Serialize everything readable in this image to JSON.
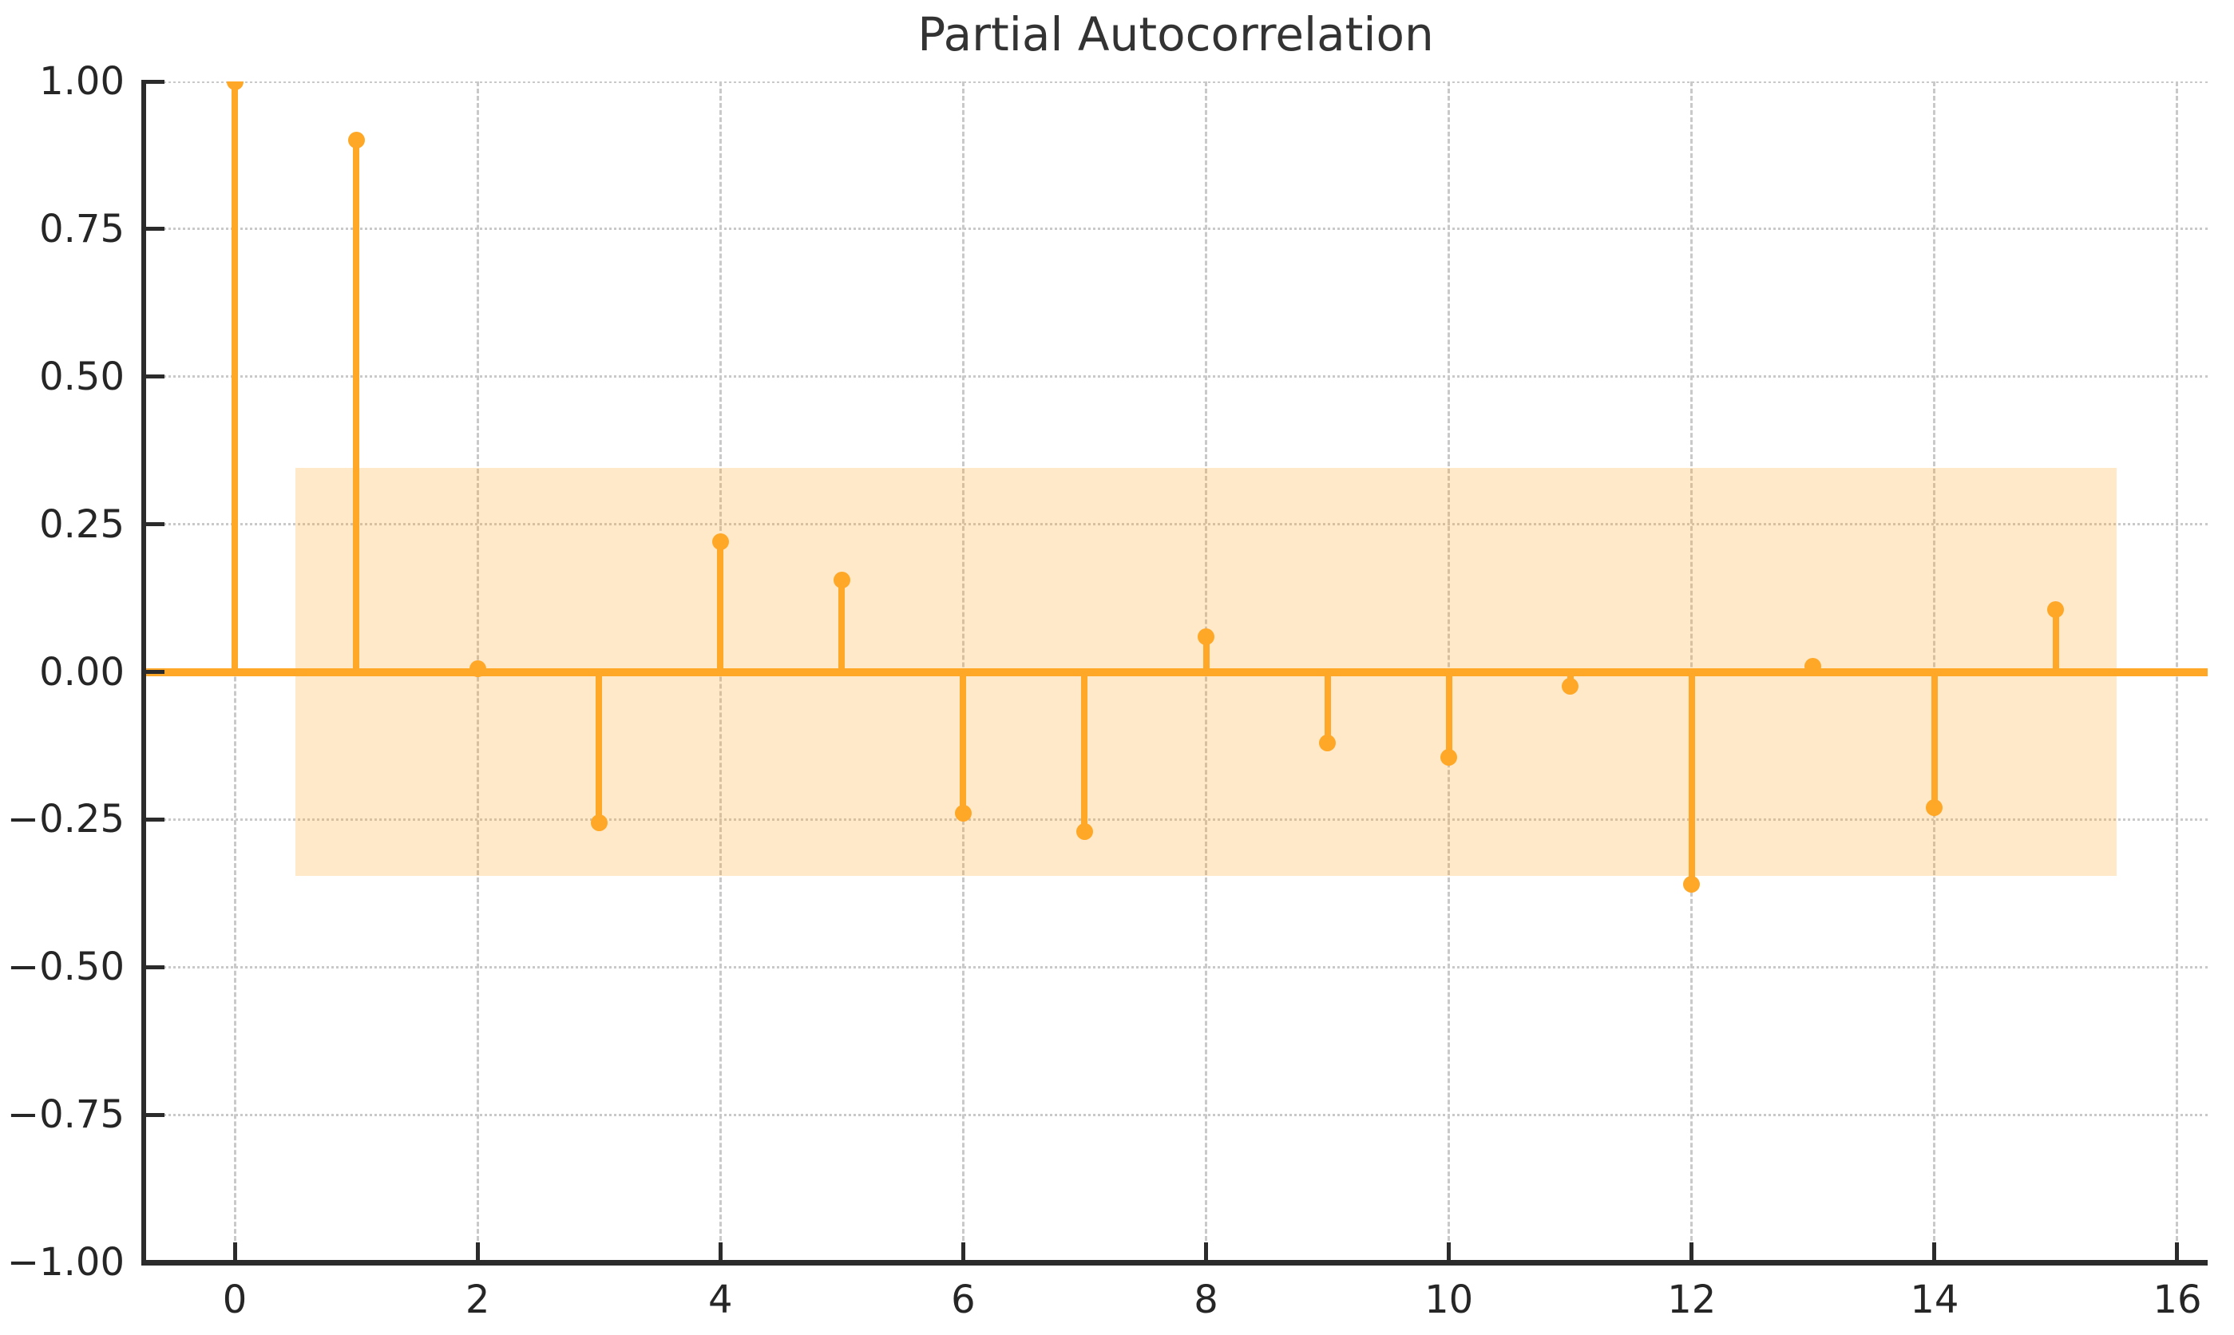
{
  "title": "Partial Autocorrelation",
  "colors": {
    "stem": "#FFA726",
    "marker": "#FFA726",
    "zero_line": "#FFA726",
    "band_fill": "rgba(255,167,38,0.25)",
    "grid": "#c9c9c9",
    "spine": "#2b2b2b",
    "tick_label": "#262626",
    "title_text": "#333333"
  },
  "chart_data": {
    "type": "stem",
    "title": "Partial Autocorrelation",
    "xlabel": "",
    "ylabel": "",
    "x": [
      0,
      1,
      2,
      3,
      4,
      5,
      6,
      7,
      8,
      9,
      10,
      11,
      12,
      13,
      14,
      15
    ],
    "values": [
      1.0,
      0.9,
      0.005,
      -0.255,
      0.22,
      0.155,
      -0.24,
      -0.27,
      0.06,
      -0.12,
      -0.145,
      -0.025,
      -0.36,
      0.01,
      -0.23,
      0.105
    ],
    "confidence_band": {
      "x_start": 0.5,
      "x_end": 15.5,
      "low": -0.345,
      "high": 0.345
    },
    "xlim": [
      -0.75,
      16.25
    ],
    "ylim": [
      -1.0,
      1.0
    ],
    "x_ticks": [
      0,
      2,
      4,
      6,
      8,
      10,
      12,
      14,
      16
    ],
    "x_tick_labels": [
      "0",
      "2",
      "4",
      "6",
      "8",
      "10",
      "12",
      "14",
      "16"
    ],
    "y_ticks": [
      1.0,
      0.75,
      0.5,
      0.25,
      0.0,
      -0.25,
      -0.5,
      -0.75,
      -1.0
    ],
    "y_tick_labels": [
      "1.00",
      "0.75",
      "0.50",
      "0.25",
      "0.00",
      "−0.25",
      "−0.50",
      "−0.75",
      "−1.00"
    ],
    "grid": true,
    "legend_position": "none"
  }
}
